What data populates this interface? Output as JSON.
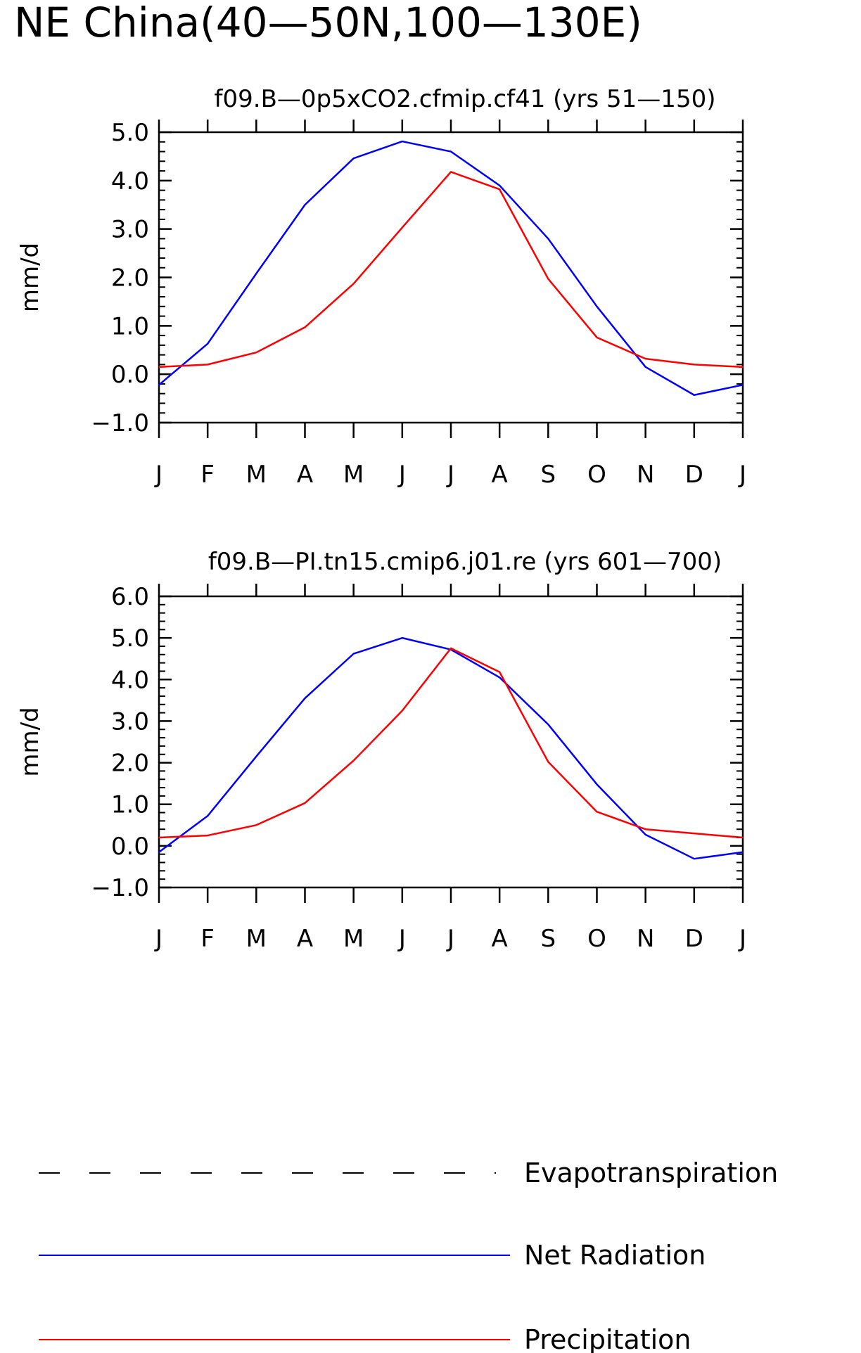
{
  "figure_title": "NE China(40—50N,100—130E)",
  "colors": {
    "net_radiation": "#0000ff",
    "precipitation": "#ff0000",
    "evapotranspiration": "#000000",
    "axes": "#000000"
  },
  "legend": {
    "placement": "bottom",
    "entries": [
      {
        "label": "Evapotranspiration",
        "style": "dashed",
        "color": "#000000"
      },
      {
        "label": "Net Radiation",
        "style": "solid",
        "color": "#0000ff"
      },
      {
        "label": "Precipitation",
        "style": "solid",
        "color": "#ff0000"
      }
    ]
  },
  "chart_data": [
    {
      "type": "line",
      "title": "f09.B—0p5xCO2.cfmip.cf41 (yrs 51—150)",
      "ylabel": "mm/d",
      "xlabel": "",
      "categories": [
        "J",
        "F",
        "M",
        "A",
        "M",
        "J",
        "J",
        "A",
        "S",
        "O",
        "N",
        "D",
        "J"
      ],
      "ylim": [
        -1.0,
        5.0
      ],
      "yticks": [
        "−1.0",
        "0.0",
        "1.0",
        "2.0",
        "3.0",
        "4.0",
        "5.0"
      ],
      "ytick_values": [
        -1,
        0,
        1,
        2,
        3,
        4,
        5
      ],
      "grid": false,
      "series": [
        {
          "name": "Net Radiation",
          "color": "#0000ff",
          "values": [
            -0.22,
            0.63,
            2.08,
            3.5,
            4.46,
            4.81,
            4.6,
            3.9,
            2.8,
            1.4,
            0.15,
            -0.43,
            -0.22
          ]
        },
        {
          "name": "Precipitation",
          "color": "#ff0000",
          "values": [
            0.15,
            0.2,
            0.45,
            0.97,
            1.87,
            3.03,
            4.18,
            3.82,
            1.97,
            0.76,
            0.32,
            0.2,
            0.15
          ]
        }
      ]
    },
    {
      "type": "line",
      "title": "f09.B—PI.tn15.cmip6.j01.re (yrs 601—700)",
      "ylabel": "mm/d",
      "xlabel": "",
      "categories": [
        "J",
        "F",
        "M",
        "A",
        "M",
        "J",
        "J",
        "A",
        "S",
        "O",
        "N",
        "D",
        "J"
      ],
      "ylim": [
        -1.0,
        6.0
      ],
      "yticks": [
        "−1.0",
        "0.0",
        "1.0",
        "2.0",
        "3.0",
        "4.0",
        "5.0",
        "6.0"
      ],
      "ytick_values": [
        -1,
        0,
        1,
        2,
        3,
        4,
        5,
        6
      ],
      "grid": false,
      "series": [
        {
          "name": "Net Radiation",
          "color": "#0000ff",
          "values": [
            -0.15,
            0.72,
            2.15,
            3.55,
            4.62,
            5.0,
            4.72,
            4.05,
            2.92,
            1.48,
            0.27,
            -0.31,
            -0.15
          ]
        },
        {
          "name": "Precipitation",
          "color": "#ff0000",
          "values": [
            0.2,
            0.25,
            0.5,
            1.03,
            2.05,
            3.25,
            4.75,
            4.18,
            2.02,
            0.82,
            0.4,
            0.3,
            0.2
          ]
        }
      ]
    }
  ]
}
